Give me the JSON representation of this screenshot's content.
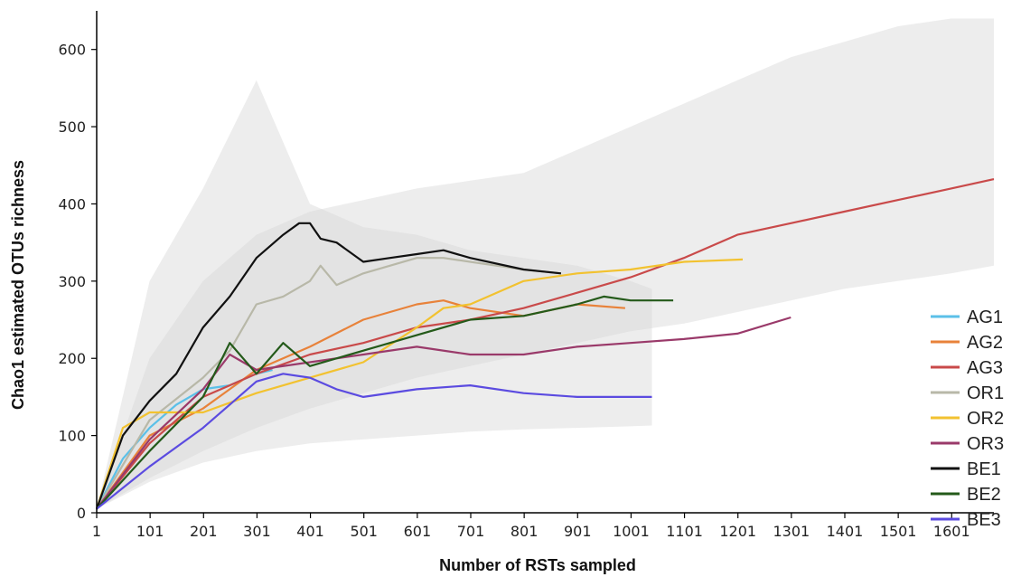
{
  "chart_data": {
    "type": "line",
    "title": "",
    "xlabel": "Number of RSTs sampled",
    "ylabel": "Chao1 estimated OTUs richness",
    "xlim": [
      1,
      1680
    ],
    "ylim": [
      0,
      650
    ],
    "x_ticks": [
      "1",
      "101",
      "201",
      "301",
      "401",
      "501",
      "601",
      "701",
      "801",
      "901",
      "1001",
      "1101",
      "1201",
      "1301",
      "1401",
      "1501",
      "1601"
    ],
    "y_ticks": [
      "0",
      "100",
      "200",
      "300",
      "400",
      "500",
      "600"
    ],
    "grid": false,
    "legend_position": "right",
    "confidence_bands_color": "#d6d6d6",
    "series": [
      {
        "name": "AG1",
        "color": "#5bc0e8",
        "x": [
          1,
          50,
          100,
          150,
          200,
          250,
          300,
          330
        ],
        "y": [
          5,
          70,
          110,
          140,
          160,
          165,
          180,
          185
        ]
      },
      {
        "name": "AG2",
        "color": "#e8823a",
        "x": [
          1,
          100,
          200,
          300,
          400,
          500,
          600,
          650,
          700,
          800,
          900,
          990
        ],
        "y": [
          5,
          100,
          135,
          185,
          215,
          250,
          270,
          275,
          265,
          255,
          270,
          265
        ]
      },
      {
        "name": "AG3",
        "color": "#c94a4a",
        "x": [
          1,
          100,
          200,
          300,
          400,
          500,
          600,
          700,
          800,
          900,
          1000,
          1100,
          1200,
          1300,
          1400,
          1500,
          1600,
          1680
        ],
        "y": [
          5,
          90,
          150,
          180,
          205,
          220,
          240,
          250,
          265,
          285,
          305,
          330,
          360,
          375,
          390,
          405,
          420,
          432
        ]
      },
      {
        "name": "OR1",
        "color": "#b8b8a8",
        "x": [
          1,
          100,
          200,
          250,
          300,
          350,
          400,
          420,
          450,
          500,
          600,
          650,
          700,
          800,
          870
        ],
        "y": [
          5,
          120,
          175,
          210,
          270,
          280,
          300,
          320,
          295,
          310,
          330,
          330,
          325,
          315,
          310
        ]
      },
      {
        "name": "OR2",
        "color": "#f2c230",
        "x": [
          1,
          50,
          100,
          200,
          300,
          400,
          500,
          600,
          650,
          700,
          800,
          900,
          1000,
          1100,
          1210
        ],
        "y": [
          5,
          110,
          130,
          130,
          155,
          175,
          195,
          240,
          265,
          270,
          300,
          310,
          315,
          325,
          328
        ]
      },
      {
        "name": "OR3",
        "color": "#9a3a6a",
        "x": [
          1,
          100,
          200,
          250,
          300,
          400,
          500,
          600,
          700,
          800,
          900,
          1000,
          1100,
          1200,
          1300
        ],
        "y": [
          5,
          95,
          160,
          205,
          185,
          195,
          205,
          215,
          205,
          205,
          215,
          220,
          225,
          232,
          253
        ]
      },
      {
        "name": "BE1",
        "color": "#111111",
        "x": [
          1,
          50,
          100,
          150,
          200,
          250,
          300,
          350,
          380,
          400,
          420,
          450,
          500,
          550,
          600,
          650,
          700,
          800,
          870
        ],
        "y": [
          5,
          100,
          145,
          180,
          240,
          280,
          330,
          360,
          375,
          375,
          355,
          350,
          325,
          330,
          335,
          340,
          330,
          315,
          310
        ]
      },
      {
        "name": "BE2",
        "color": "#245a1a",
        "x": [
          1,
          100,
          200,
          250,
          300,
          350,
          400,
          500,
          600,
          700,
          800,
          900,
          950,
          1000,
          1080
        ],
        "y": [
          5,
          80,
          150,
          220,
          180,
          220,
          190,
          210,
          230,
          250,
          255,
          270,
          280,
          275,
          275
        ]
      },
      {
        "name": "BE3",
        "color": "#5b4be0",
        "x": [
          1,
          100,
          200,
          300,
          350,
          400,
          450,
          500,
          600,
          700,
          800,
          900,
          1000,
          1040
        ],
        "y": [
          5,
          60,
          110,
          170,
          180,
          175,
          160,
          150,
          160,
          165,
          155,
          150,
          150,
          150
        ]
      }
    ],
    "confidence_bands": [
      {
        "x": [
          1,
          100,
          200,
          300,
          400,
          500,
          600,
          700,
          800,
          900,
          1000,
          1040
        ],
        "lower": [
          5,
          40,
          65,
          80,
          90,
          95,
          100,
          105,
          108,
          110,
          112,
          113
        ],
        "upper": [
          5,
          300,
          420,
          560,
          400,
          370,
          360,
          340,
          330,
          320,
          300,
          290
        ]
      },
      {
        "x": [
          1,
          100,
          200,
          300,
          400,
          500,
          600,
          700,
          800,
          900,
          1000,
          1100,
          1200,
          1300,
          1400,
          1500,
          1600,
          1680
        ],
        "lower": [
          5,
          45,
          80,
          110,
          135,
          155,
          175,
          190,
          205,
          220,
          235,
          245,
          260,
          275,
          290,
          300,
          310,
          320
        ],
        "upper": [
          5,
          200,
          300,
          360,
          390,
          405,
          420,
          430,
          440,
          470,
          500,
          530,
          560,
          590,
          610,
          630,
          640,
          640
        ]
      }
    ]
  }
}
